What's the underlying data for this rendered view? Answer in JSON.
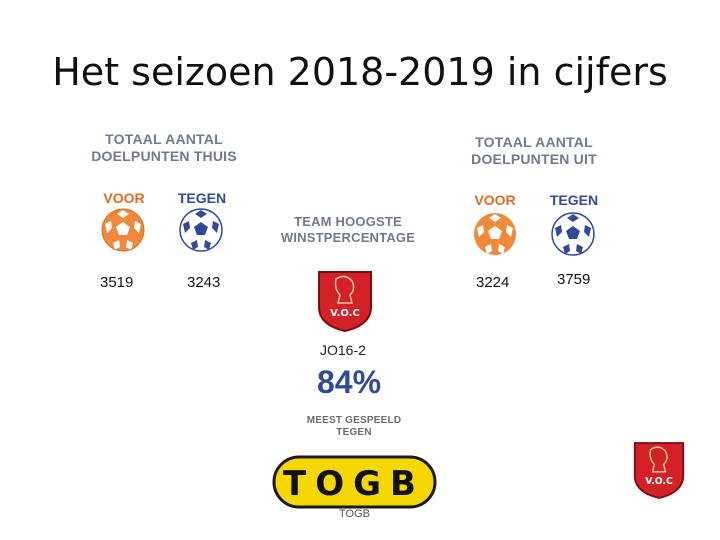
{
  "slide": {
    "title": "Het seizoen 2018-2019 in cijfers"
  },
  "thuis": {
    "heading_line1": "TOTAAL AANTAL",
    "heading_line2": "DOELPUNTEN THUIS",
    "voor_label": "VOOR",
    "tegen_label": "TEGEN",
    "voor_value": "3519",
    "tegen_value": "3243"
  },
  "uit": {
    "heading_line1": "TOTAAL AANTAL",
    "heading_line2": "DOELPUNTEN UIT",
    "voor_label": "VOOR",
    "tegen_label": "TEGEN",
    "voor_value": "3224",
    "tegen_value": "3759"
  },
  "winst": {
    "heading_line1": "TEAM HOOGSTE",
    "heading_line2": "WINSTPERCENTAGE",
    "team": "JO16-2",
    "percentage": "84%"
  },
  "meest": {
    "heading_line1": "MEEST GESPEELD",
    "heading_line2": "TEGEN",
    "logo_text": "TOGB",
    "team": "TOGB"
  },
  "crest": {
    "text": "V.O.C"
  },
  "colors": {
    "orange": "#e36b1f",
    "blue": "#2f4a9d",
    "crest_red": "#d42027",
    "togb_yellow": "#f5d800"
  }
}
